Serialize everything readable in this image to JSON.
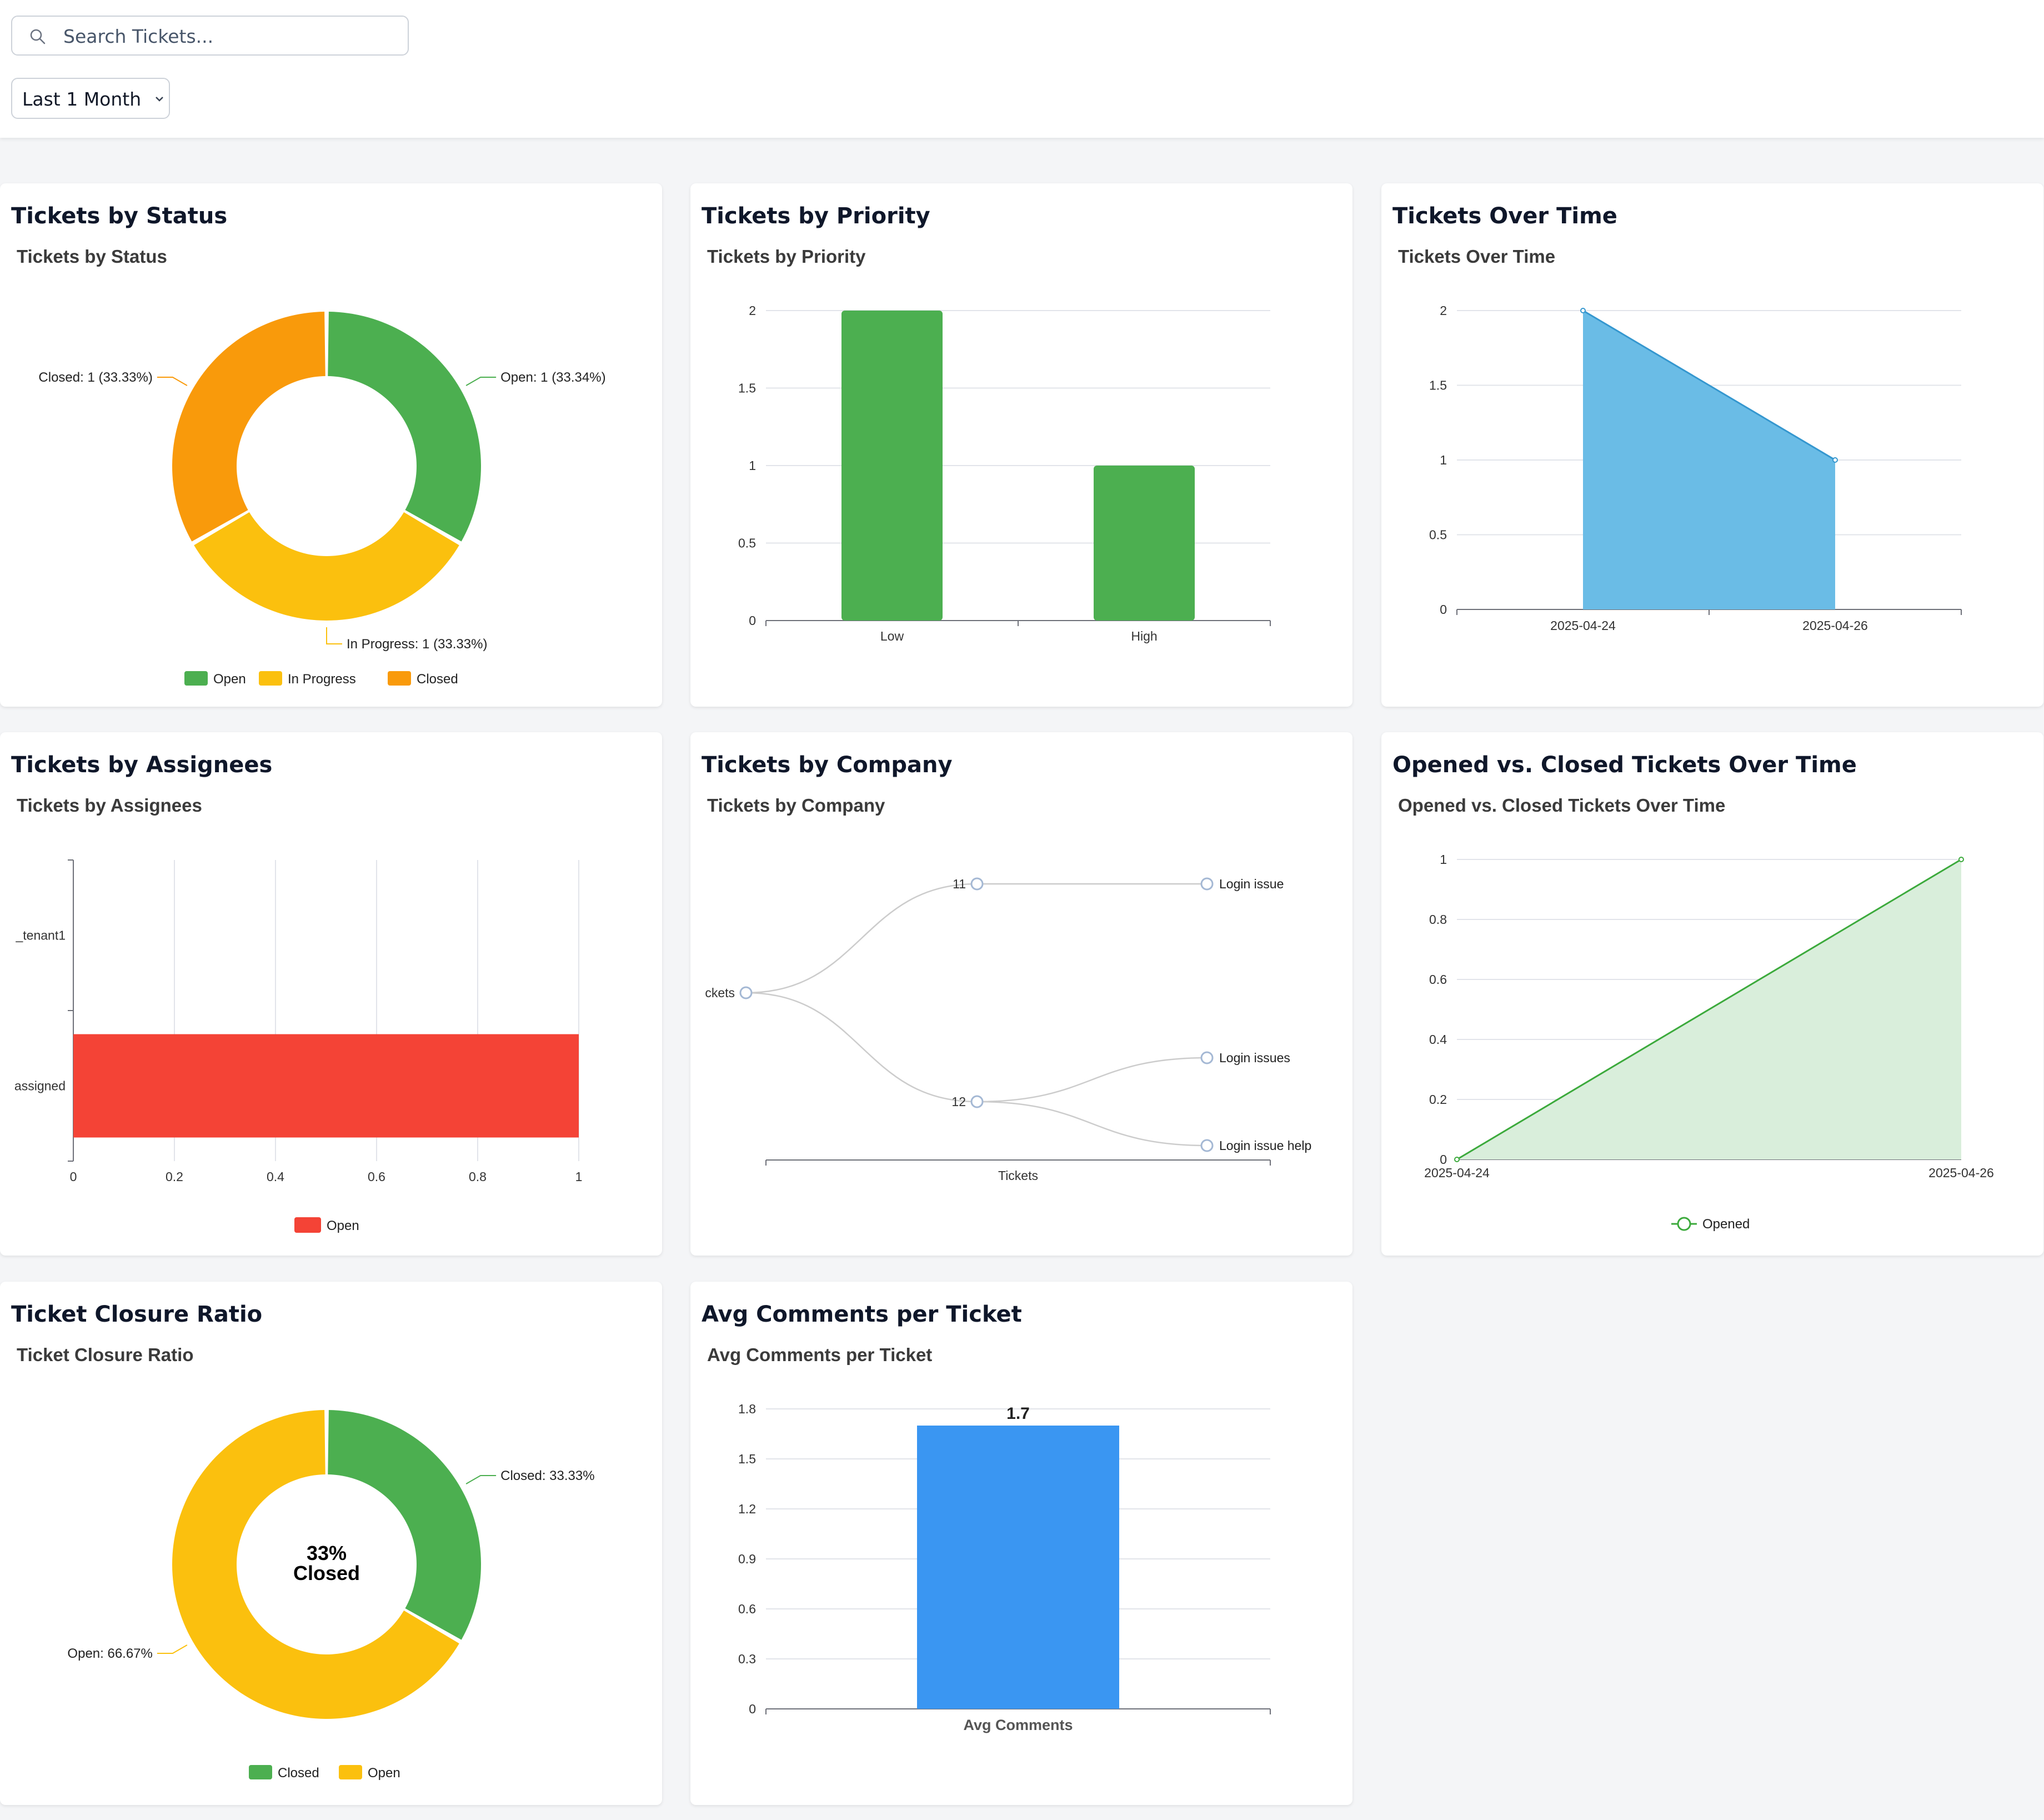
{
  "search": {
    "placeholder": "Search Tickets..."
  },
  "filter": {
    "selected": "Last 1 Month"
  },
  "colors": {
    "green": "#4caf50",
    "yellow": "#fbc00e",
    "orange": "#f99a0b",
    "blue_area": "#6abce6",
    "blue_line": "#3597cf",
    "red": "#f44336",
    "bar_blue": "#3a96f2",
    "opened_line": "#3caa3c",
    "opened_fill": "#d9eedb"
  },
  "icons": {
    "search": "search-icon",
    "dropdown": "chevron-down-icon"
  },
  "cards": {
    "status": {
      "title": "Tickets by Status"
    },
    "priority": {
      "title": "Tickets by Priority"
    },
    "over_time": {
      "title": "Tickets Over Time"
    },
    "assignees": {
      "title": "Tickets by Assignees"
    },
    "company": {
      "title": "Tickets by Company"
    },
    "opened_closed": {
      "title": "Opened vs. Closed Tickets Over Time"
    },
    "closure": {
      "title": "Ticket Closure Ratio"
    },
    "comments": {
      "title": "Avg Comments per Ticket"
    }
  },
  "chart_data": [
    {
      "id": "status",
      "type": "pie",
      "title": "Tickets by Status",
      "slices": [
        {
          "name": "Open",
          "value": 1,
          "label": "Open: 1 (33.34%)"
        },
        {
          "name": "In Progress",
          "value": 1,
          "label": "In Progress: 1 (33.33%)"
        },
        {
          "name": "Closed",
          "value": 1,
          "label": "Closed: 1 (33.33%)"
        }
      ],
      "legend": [
        "Open",
        "In Progress",
        "Closed"
      ],
      "legend_position": "bottom"
    },
    {
      "id": "priority",
      "type": "bar",
      "title": "Tickets by Priority",
      "categories": [
        "Low",
        "High"
      ],
      "values": [
        2,
        1
      ],
      "ylim": [
        0,
        2
      ],
      "yticks": [
        "0",
        "0.5",
        "1",
        "1.5",
        "2"
      ],
      "grid": true
    },
    {
      "id": "over_time",
      "type": "area",
      "title": "Tickets Over Time",
      "x": [
        "2025-04-24",
        "2025-04-26"
      ],
      "values": [
        2,
        1
      ],
      "ylim": [
        0,
        2
      ],
      "yticks": [
        "0",
        "0.5",
        "1",
        "1.5",
        "2"
      ],
      "grid": true
    },
    {
      "id": "assignees",
      "type": "bar",
      "orientation": "horizontal",
      "title": "Tickets by Assignees",
      "categories": [
        "assigned",
        "_tenant1"
      ],
      "series": [
        {
          "name": "Open",
          "values": [
            1,
            0
          ]
        }
      ],
      "xlim": [
        0,
        1
      ],
      "xticks": [
        "0",
        "0.2",
        "0.4",
        "0.6",
        "0.8",
        "1"
      ],
      "legend_position": "bottom"
    },
    {
      "id": "company",
      "type": "tree",
      "title": "Tickets by Company",
      "root": "ckets",
      "children": [
        {
          "name": "11",
          "children": [
            "Login issue"
          ]
        },
        {
          "name": "12",
          "children": [
            "Login issues",
            "Login issue help"
          ]
        }
      ],
      "xlabel": "Tickets"
    },
    {
      "id": "opened_closed",
      "type": "area",
      "title": "Opened vs. Closed Tickets Over Time",
      "x": [
        "2025-04-24",
        "2025-04-26"
      ],
      "series": [
        {
          "name": "Opened",
          "values": [
            0,
            1
          ]
        }
      ],
      "ylim": [
        0,
        1
      ],
      "yticks": [
        "0",
        "0.2",
        "0.4",
        "0.6",
        "0.8",
        "1"
      ],
      "legend_position": "bottom"
    },
    {
      "id": "closure",
      "type": "pie",
      "title": "Ticket Closure Ratio",
      "slices": [
        {
          "name": "Closed",
          "value": 33.33,
          "label": "Closed: 33.33%"
        },
        {
          "name": "Open",
          "value": 66.67,
          "label": "Open: 66.67%"
        }
      ],
      "center_text": [
        "33%",
        "Closed"
      ],
      "legend": [
        "Closed",
        "Open"
      ],
      "legend_position": "bottom"
    },
    {
      "id": "comments",
      "type": "bar",
      "title": "Avg Comments per Ticket",
      "categories": [
        "Avg Comments"
      ],
      "values": [
        1.7
      ],
      "data_labels": [
        "1.7"
      ],
      "ylim": [
        0,
        1.8
      ],
      "yticks": [
        "0",
        "0.3",
        "0.6",
        "0.9",
        "1.2",
        "1.5",
        "1.8"
      ],
      "grid": true
    }
  ]
}
